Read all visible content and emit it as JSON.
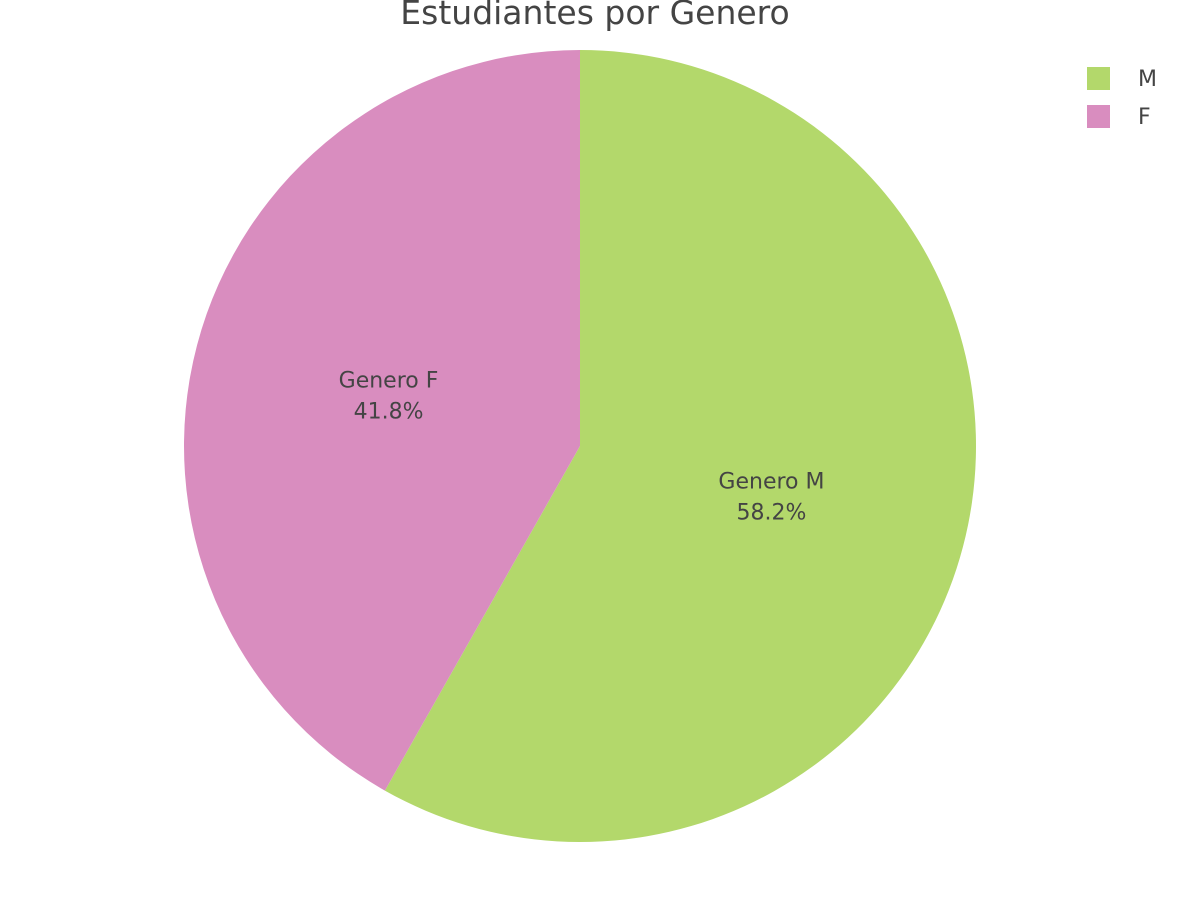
{
  "chart_data": {
    "type": "pie",
    "title": "Estudiantes por Genero",
    "slices": [
      {
        "name": "M",
        "label": "Genero M",
        "percent_text": "58.2%",
        "value": 58.2,
        "color": "#b3d86b"
      },
      {
        "name": "F",
        "label": "Genero F",
        "percent_text": "41.8%",
        "value": 41.8,
        "color": "#d98dbf"
      }
    ],
    "start_angle_deg": 0,
    "direction": "clockwise",
    "legend": {
      "position": "top-right",
      "items": [
        "M",
        "F"
      ]
    }
  }
}
